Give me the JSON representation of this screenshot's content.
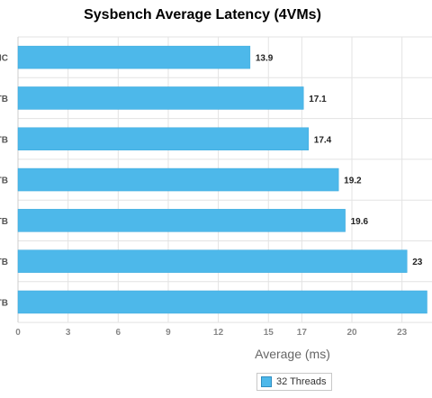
{
  "chart_data": {
    "type": "bar",
    "orientation": "horizontal",
    "title": "Sysbench Average Latency (4VMs)",
    "xlabel": "Average (ms)",
    "ylabel": "",
    "categories": [
      "NC",
      "TB",
      "TB",
      "TB",
      "TB",
      "TB",
      "TB"
    ],
    "series": [
      {
        "name": "32 Threads",
        "values": [
          13.9,
          17.1,
          17.4,
          19.2,
          19.6,
          23.3,
          24.5
        ]
      }
    ],
    "value_labels": [
      "13.9",
      "17.1",
      "17.4",
      "19.2",
      "19.6",
      "23",
      ""
    ],
    "xlim": [
      0,
      24
    ],
    "xticks": [
      0,
      3,
      6,
      9,
      12,
      15,
      17,
      20,
      23
    ],
    "grid": true,
    "legend_position": "bottom-right",
    "bar_color": "#4db8ea"
  }
}
